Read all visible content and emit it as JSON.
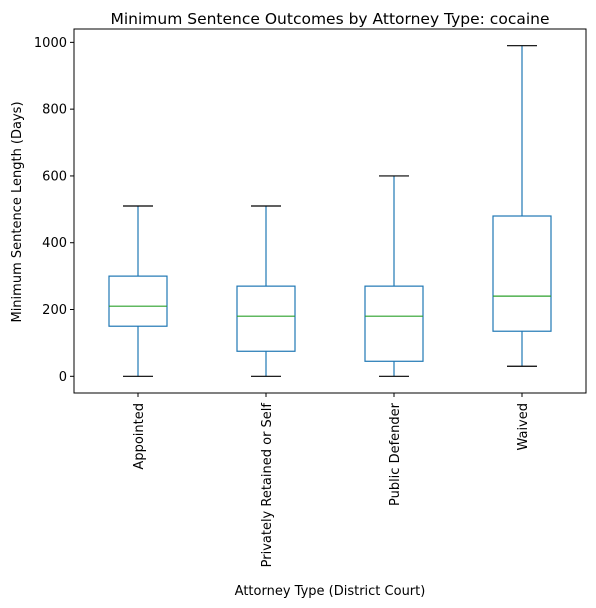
{
  "chart_data": {
    "type": "box",
    "title": "Minimum Sentence Outcomes by Attorney Type: cocaine",
    "xlabel": "Attorney Type (District Court)",
    "ylabel": "Minimum Sentence Length (Days)",
    "ylim": [
      -50,
      1040
    ],
    "yticks": [
      0,
      200,
      400,
      600,
      800,
      1000
    ],
    "categories": [
      "Appointed",
      "Privately Retained or Self",
      "Public Defender",
      "Waived"
    ],
    "boxes": [
      {
        "category": "Appointed",
        "whisker_low": 0,
        "q1": 150,
        "median": 210,
        "q3": 300,
        "whisker_high": 510
      },
      {
        "category": "Privately Retained or Self",
        "whisker_low": 0,
        "q1": 75,
        "median": 180,
        "q3": 270,
        "whisker_high": 510
      },
      {
        "category": "Public Defender",
        "whisker_low": 0,
        "q1": 45,
        "median": 180,
        "q3": 270,
        "whisker_high": 600
      },
      {
        "category": "Waived",
        "whisker_low": 30,
        "q1": 135,
        "median": 240,
        "q3": 480,
        "whisker_high": 990
      }
    ],
    "colors": {
      "box": "#1f77b4",
      "median": "#2ca02c",
      "cap": "#000000"
    },
    "grid": false
  }
}
